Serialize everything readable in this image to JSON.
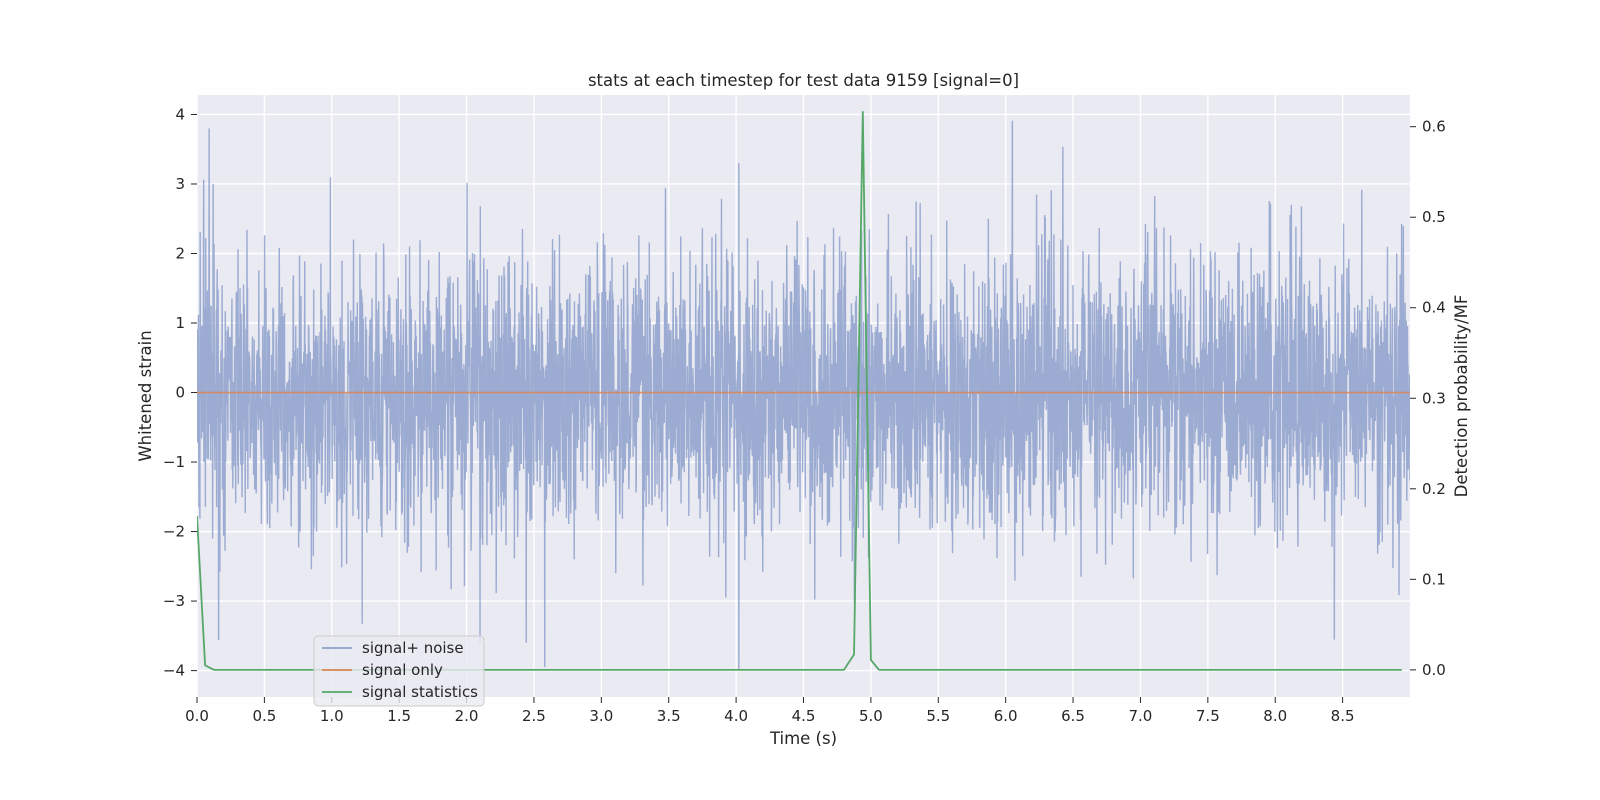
{
  "chart_data": {
    "type": "line",
    "title": "stats at each timestep for test data 9159 [signal=0]",
    "xlabel": "Time (s)",
    "ylabel_left": "Whitened strain",
    "ylabel_right": "Detection probability/MF",
    "xlim": [
      0.0,
      9.0
    ],
    "ylim_left": [
      -4.38,
      4.28
    ],
    "ylim_right": [
      -0.03,
      0.635
    ],
    "x_ticks": [
      "0.0",
      "0.5",
      "1.0",
      "1.5",
      "2.0",
      "2.5",
      "3.0",
      "3.5",
      "4.0",
      "4.5",
      "5.0",
      "5.5",
      "6.0",
      "6.5",
      "7.0",
      "7.5",
      "8.0",
      "8.5"
    ],
    "y_ticks_left": [
      "4",
      "3",
      "2",
      "1",
      "0",
      "−1",
      "−2",
      "−3",
      "−4"
    ],
    "y_ticks_right": [
      "0.6",
      "0.5",
      "0.4",
      "0.3",
      "0.2",
      "0.1",
      "0.0"
    ],
    "grid": true,
    "legend": {
      "position": "lower left",
      "entries": [
        "signal+ noise",
        "signal only",
        "signal statistics"
      ]
    },
    "colors": {
      "signal_noise": "#8da0cb",
      "signal_only": "#dd8452",
      "signal_statistics": "#55a868",
      "plot_background": "#eaeaf2"
    },
    "series": [
      {
        "name": "signal+ noise",
        "axis": "left",
        "noise_sd": 1.0,
        "notable_peaks": [
          [
            0.05,
            3.05
          ],
          [
            0.09,
            3.8
          ],
          [
            0.12,
            3.0
          ],
          [
            4.02,
            3.3
          ],
          [
            4.02,
            -4.0
          ],
          [
            2.58,
            -3.95
          ],
          [
            6.05,
            3.9
          ],
          [
            0.16,
            -3.55
          ]
        ]
      },
      {
        "name": "signal only",
        "axis": "left",
        "x": [
          0.0,
          9.0
        ],
        "y": [
          0.0,
          0.0
        ]
      },
      {
        "name": "signal statistics",
        "axis": "right",
        "x": [
          0.0,
          0.06,
          0.125,
          0.25,
          0.5,
          1.0,
          1.5,
          2.0,
          2.5,
          3.0,
          3.5,
          4.0,
          4.5,
          4.8,
          4.875,
          4.94,
          5.0,
          5.06,
          5.125,
          5.5,
          6.0,
          6.5,
          7.0,
          7.5,
          8.0,
          8.5,
          8.94
        ],
        "y": [
          0.17,
          0.005,
          0.0,
          0.0,
          0.0,
          0.0,
          0.0,
          0.0,
          0.0,
          0.0,
          0.0,
          0.0,
          0.0,
          0.0,
          0.017,
          0.617,
          0.011,
          0.0,
          0.0,
          0.0,
          0.0,
          0.0,
          0.0,
          0.0,
          0.0,
          0.0,
          0.0
        ]
      }
    ]
  }
}
